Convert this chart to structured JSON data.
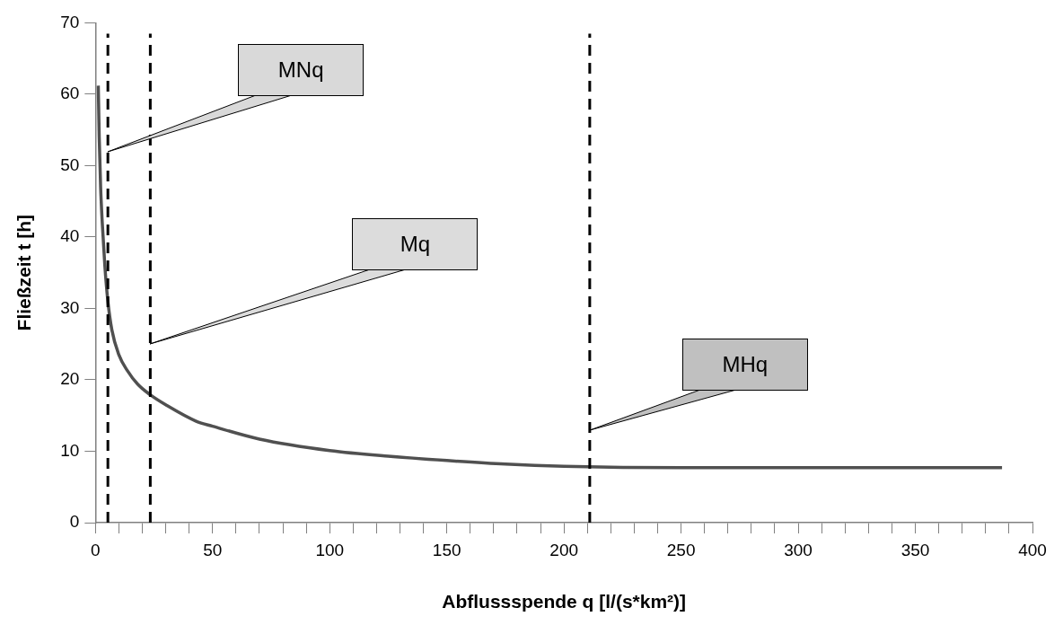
{
  "chart_data": {
    "type": "line",
    "xlabel": "Abflussspende q [l/(s*km²)]",
    "ylabel": "Fließzeit t [h]",
    "x": [
      1.2,
      1.6,
      2.2,
      2.9,
      4,
      5.3,
      7,
      10,
      13.6,
      18,
      23.4,
      30,
      43,
      50,
      70,
      100,
      125,
      150,
      175,
      200,
      250,
      300,
      350,
      387
    ],
    "series": [
      {
        "color": "#505050",
        "values": [
          61.2,
          54,
          47,
          42,
          36,
          31,
          27,
          23.5,
          21.3,
          19.4,
          17.9,
          16.5,
          14.2,
          13.5,
          11.7,
          10.1,
          9.3,
          8.7,
          8.2,
          7.9,
          7.7,
          7.7,
          7.7,
          7.7
        ]
      }
    ],
    "xlim": [
      0,
      400
    ],
    "xticks": [
      0,
      {
        "value": 10,
        "label": null
      },
      {
        "value": 20,
        "label": null
      },
      {
        "value": 30,
        "label": null
      },
      {
        "value": 40,
        "label": null
      },
      50,
      {
        "value": 60,
        "label": null
      },
      {
        "value": 70,
        "label": null
      },
      {
        "value": 80,
        "label": null
      },
      {
        "value": 90,
        "label": null
      },
      100,
      {
        "value": 110,
        "label": null
      },
      {
        "value": 120,
        "label": null
      },
      {
        "value": 130,
        "label": null
      },
      {
        "value": 140,
        "label": null
      },
      150,
      {
        "value": 160,
        "label": null
      },
      {
        "value": 170,
        "label": null
      },
      {
        "value": 180,
        "label": null
      },
      {
        "value": 190,
        "label": null
      },
      200,
      {
        "value": 210,
        "label": null
      },
      {
        "value": 220,
        "label": null
      },
      {
        "value": 230,
        "label": null
      },
      {
        "value": 240,
        "label": null
      },
      250,
      {
        "value": 260,
        "label": null
      },
      {
        "value": 270,
        "label": null
      },
      {
        "value": 280,
        "label": null
      },
      {
        "value": 290,
        "label": null
      },
      300,
      {
        "value": 310,
        "label": null
      },
      {
        "value": 320,
        "label": null
      },
      {
        "value": 330,
        "label": null
      },
      {
        "value": 340,
        "label": null
      },
      350,
      {
        "value": 360,
        "label": null
      },
      {
        "value": 370,
        "label": null
      },
      {
        "value": 380,
        "label": null
      },
      {
        "value": 390,
        "label": null
      },
      400
    ],
    "ylim": [
      0,
      70
    ],
    "yticks": [
      0,
      10,
      20,
      30,
      40,
      50,
      60,
      70
    ],
    "ref_lines": [
      {
        "axis": "x",
        "value": 5.3,
        "color": "#000000",
        "line_style": "dashed"
      },
      {
        "axis": "x",
        "value": 23.4,
        "color": "#000000",
        "line_style": "dashed"
      },
      {
        "axis": "x",
        "value": 211,
        "color": "#000000",
        "line_style": "dashed"
      }
    ],
    "annotations": [
      {
        "text": "MNq",
        "x": 5.3,
        "y": 52
      },
      {
        "text": "Mq",
        "x": 23.4,
        "y": 25
      },
      {
        "text": "MHq",
        "x": 211,
        "y": 13
      }
    ],
    "grid": false,
    "legend": false,
    "marker": "none",
    "line_style": "solid"
  }
}
